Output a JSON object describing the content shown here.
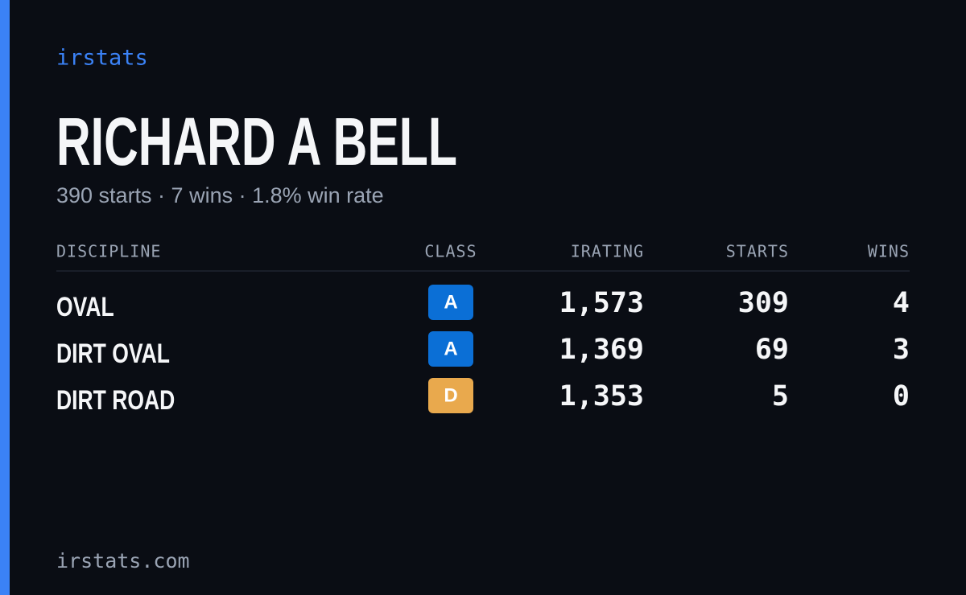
{
  "header": {
    "brand": "irstats",
    "title": "RICHARD A BELL",
    "subtitle": "390 starts · 7 wins · 1.8% win rate"
  },
  "table": {
    "columns": [
      "DISCIPLINE",
      "CLASS",
      "IRATING",
      "STARTS",
      "WINS"
    ],
    "rows": [
      {
        "discipline": "OVAL",
        "class": "A",
        "class_color": "#0b6fd6",
        "irating": "1,573",
        "starts": "309",
        "wins": "4"
      },
      {
        "discipline": "DIRT OVAL",
        "class": "A",
        "class_color": "#0b6fd6",
        "irating": "1,369",
        "starts": "69",
        "wins": "3"
      },
      {
        "discipline": "DIRT ROAD",
        "class": "D",
        "class_color": "#e9a94d",
        "irating": "1,353",
        "starts": "5",
        "wins": "0"
      }
    ]
  },
  "footer": {
    "site": "irstats.com"
  }
}
